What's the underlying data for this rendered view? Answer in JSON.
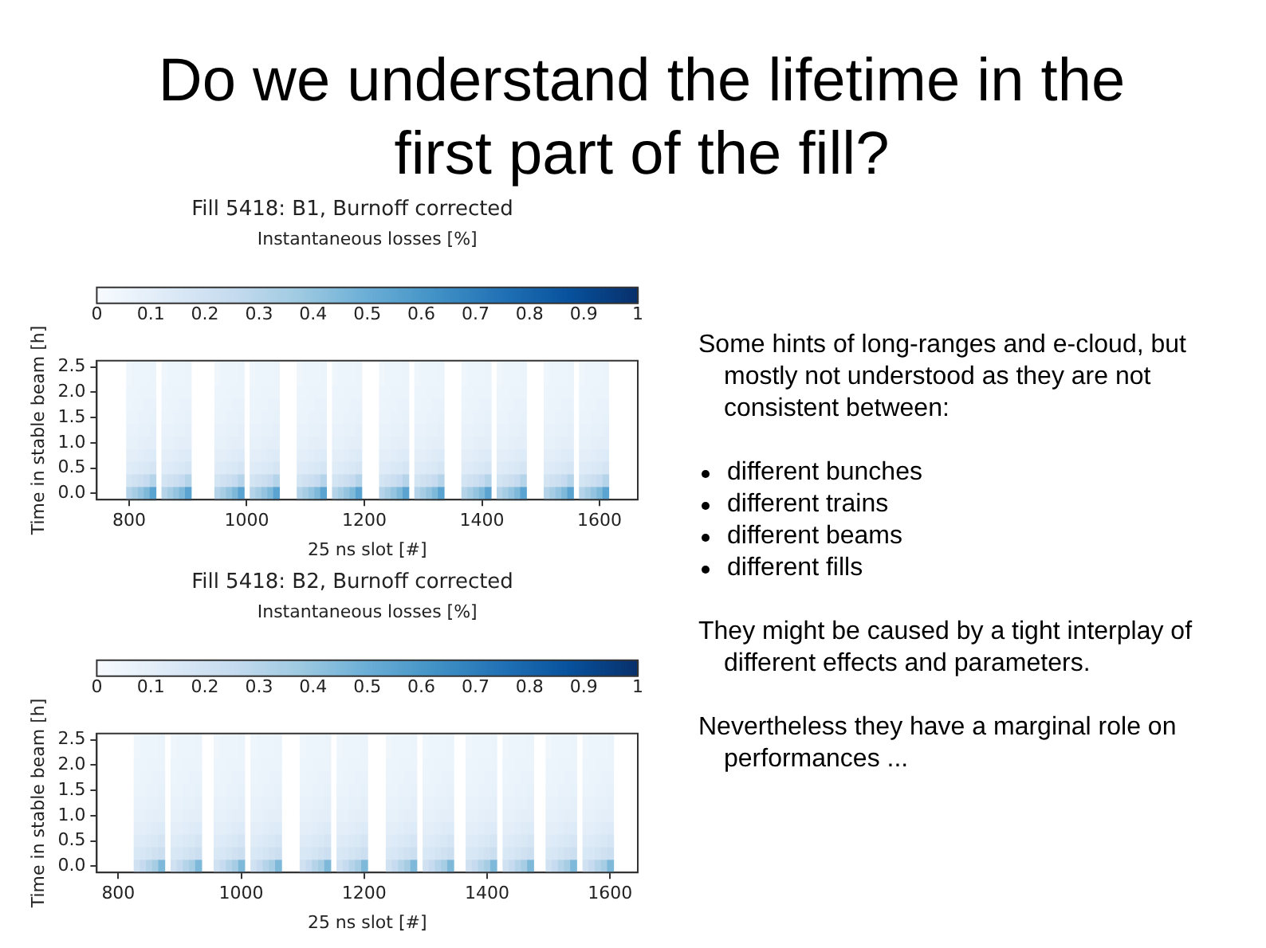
{
  "chart_data": [
    {
      "type": "heatmap",
      "title": "Fill 5418: B1, Burnoff corrected",
      "clabel": "Instantaneous losses [%]",
      "xlabel": "25 ns slot [#]",
      "ylabel": "Time in stable beam [h]",
      "clim": [
        0,
        1
      ],
      "cticks": [
        0,
        0.1,
        0.2,
        0.3,
        0.4,
        0.5,
        0.6,
        0.7,
        0.8,
        0.9,
        1
      ],
      "categories": [
        null,
        null,
        null,
        null,
        null,
        "800",
        null,
        null,
        null,
        null,
        null,
        null,
        null,
        null,
        null,
        null,
        null,
        null,
        null,
        null,
        null,
        null,
        null,
        null,
        null,
        "1000",
        null,
        null,
        null,
        null,
        null,
        null,
        null,
        null,
        null,
        null,
        null,
        null,
        null,
        null,
        null,
        null,
        null,
        null,
        null,
        "1200",
        null,
        null,
        null,
        null,
        null,
        null,
        null,
        null,
        null,
        null,
        null,
        null,
        null,
        null,
        null,
        null,
        null,
        null,
        null,
        "1400",
        null,
        null,
        null,
        null,
        null,
        null,
        null,
        null,
        null,
        null,
        null,
        null,
        null,
        null,
        null,
        null,
        null,
        null,
        null,
        "1600",
        null,
        null,
        null,
        null,
        null,
        null
      ],
      "y_categories": [
        "2.5",
        null,
        "2.0",
        null,
        "1.5",
        null,
        "1.0",
        null,
        "0.5",
        null,
        "0.0"
      ],
      "cells": [
        [
          null,
          null,
          null,
          null,
          null,
          0.04,
          0.05,
          0.05,
          0.05,
          0.06,
          null,
          0.04,
          0.05,
          0.05,
          0.05,
          0.06,
          null,
          null,
          null,
          null,
          0.04,
          0.05,
          0.05,
          0.05,
          0.06,
          null,
          0.04,
          0.05,
          0.05,
          0.05,
          0.06,
          null,
          null,
          null,
          0.04,
          0.05,
          0.05,
          0.05,
          0.06,
          null,
          0.04,
          0.05,
          0.05,
          0.05,
          0.06,
          null,
          null,
          null,
          0.04,
          0.05,
          0.05,
          0.05,
          0.06,
          null,
          0.04,
          0.05,
          0.05,
          0.05,
          0.06,
          null,
          null,
          null,
          0.04,
          0.05,
          0.05,
          0.05,
          0.06,
          null,
          0.04,
          0.05,
          0.05,
          0.05,
          0.06,
          null,
          null,
          null,
          0.04,
          0.05,
          0.05,
          0.05,
          0.06,
          null,
          0.04,
          0.05,
          0.05,
          0.05,
          0.06,
          null,
          null,
          null,
          null,
          null
        ],
        [
          null,
          null,
          null,
          null,
          null,
          0.04,
          0.05,
          0.05,
          0.05,
          0.06,
          null,
          0.04,
          0.05,
          0.05,
          0.05,
          0.06,
          null,
          null,
          null,
          null,
          0.04,
          0.05,
          0.05,
          0.05,
          0.06,
          null,
          0.04,
          0.05,
          0.05,
          0.05,
          0.06,
          null,
          null,
          null,
          0.04,
          0.05,
          0.05,
          0.05,
          0.06,
          null,
          0.04,
          0.05,
          0.05,
          0.05,
          0.06,
          null,
          null,
          null,
          0.04,
          0.05,
          0.05,
          0.05,
          0.06,
          null,
          0.04,
          0.05,
          0.05,
          0.05,
          0.06,
          null,
          null,
          null,
          0.04,
          0.05,
          0.05,
          0.05,
          0.06,
          null,
          0.04,
          0.05,
          0.05,
          0.05,
          0.06,
          null,
          null,
          null,
          0.04,
          0.05,
          0.05,
          0.05,
          0.06,
          null,
          0.04,
          0.05,
          0.05,
          0.05,
          0.06,
          null,
          null,
          null,
          null,
          null
        ],
        [
          null,
          null,
          null,
          null,
          null,
          0.05,
          0.05,
          0.06,
          0.06,
          0.06,
          null,
          0.05,
          0.05,
          0.06,
          0.06,
          0.06,
          null,
          null,
          null,
          null,
          0.05,
          0.05,
          0.06,
          0.06,
          0.06,
          null,
          0.05,
          0.05,
          0.06,
          0.06,
          0.06,
          null,
          null,
          null,
          0.05,
          0.05,
          0.06,
          0.06,
          0.06,
          null,
          0.05,
          0.05,
          0.06,
          0.06,
          0.06,
          null,
          null,
          null,
          0.05,
          0.05,
          0.06,
          0.06,
          0.06,
          null,
          0.05,
          0.05,
          0.06,
          0.06,
          0.06,
          null,
          null,
          null,
          0.05,
          0.05,
          0.06,
          0.06,
          0.06,
          null,
          0.05,
          0.05,
          0.06,
          0.06,
          0.06,
          null,
          null,
          null,
          0.05,
          0.05,
          0.06,
          0.06,
          0.06,
          null,
          0.05,
          0.05,
          0.06,
          0.06,
          0.06,
          null,
          null,
          null,
          null,
          null
        ],
        [
          null,
          null,
          null,
          null,
          null,
          0.05,
          0.06,
          0.06,
          0.07,
          0.07,
          null,
          0.05,
          0.06,
          0.06,
          0.07,
          0.07,
          null,
          null,
          null,
          null,
          0.05,
          0.06,
          0.06,
          0.07,
          0.07,
          null,
          0.05,
          0.06,
          0.06,
          0.07,
          0.07,
          null,
          null,
          null,
          0.05,
          0.06,
          0.06,
          0.07,
          0.07,
          null,
          0.05,
          0.06,
          0.06,
          0.07,
          0.07,
          null,
          null,
          null,
          0.05,
          0.06,
          0.06,
          0.07,
          0.07,
          null,
          0.05,
          0.06,
          0.06,
          0.07,
          0.07,
          null,
          null,
          null,
          0.05,
          0.06,
          0.06,
          0.07,
          0.07,
          null,
          0.05,
          0.06,
          0.06,
          0.07,
          0.07,
          null,
          null,
          null,
          0.05,
          0.06,
          0.06,
          0.07,
          0.07,
          null,
          0.05,
          0.06,
          0.06,
          0.07,
          0.07,
          null,
          null,
          null,
          null,
          null
        ],
        [
          null,
          null,
          null,
          null,
          null,
          0.06,
          0.06,
          0.07,
          0.07,
          0.08,
          null,
          0.06,
          0.06,
          0.07,
          0.07,
          0.08,
          null,
          null,
          null,
          null,
          0.06,
          0.06,
          0.07,
          0.07,
          0.08,
          null,
          0.06,
          0.06,
          0.07,
          0.07,
          0.08,
          null,
          null,
          null,
          0.06,
          0.06,
          0.07,
          0.07,
          0.08,
          null,
          0.06,
          0.06,
          0.07,
          0.07,
          0.08,
          null,
          null,
          null,
          0.06,
          0.06,
          0.07,
          0.07,
          0.08,
          null,
          0.06,
          0.06,
          0.07,
          0.07,
          0.08,
          null,
          null,
          null,
          0.06,
          0.06,
          0.07,
          0.07,
          0.08,
          null,
          0.06,
          0.06,
          0.07,
          0.07,
          0.08,
          null,
          null,
          null,
          0.06,
          0.06,
          0.07,
          0.07,
          0.08,
          null,
          0.06,
          0.06,
          0.07,
          0.07,
          0.08,
          null,
          null,
          null,
          null,
          null
        ],
        [
          null,
          null,
          null,
          null,
          null,
          0.07,
          0.07,
          0.08,
          0.08,
          0.09,
          null,
          0.07,
          0.07,
          0.08,
          0.08,
          0.09,
          null,
          null,
          null,
          null,
          0.07,
          0.07,
          0.08,
          0.08,
          0.09,
          null,
          0.07,
          0.07,
          0.08,
          0.08,
          0.09,
          null,
          null,
          null,
          0.07,
          0.07,
          0.08,
          0.08,
          0.09,
          null,
          0.07,
          0.07,
          0.08,
          0.08,
          0.09,
          null,
          null,
          null,
          0.07,
          0.07,
          0.08,
          0.08,
          0.09,
          null,
          0.07,
          0.07,
          0.08,
          0.08,
          0.09,
          null,
          null,
          null,
          0.07,
          0.07,
          0.08,
          0.08,
          0.09,
          null,
          0.07,
          0.07,
          0.08,
          0.08,
          0.09,
          null,
          null,
          null,
          0.07,
          0.07,
          0.08,
          0.08,
          0.09,
          null,
          0.07,
          0.07,
          0.08,
          0.08,
          0.09,
          null,
          null,
          null,
          null,
          null
        ],
        [
          null,
          null,
          null,
          null,
          null,
          0.08,
          0.08,
          0.09,
          0.1,
          0.1,
          null,
          0.08,
          0.08,
          0.09,
          0.1,
          0.1,
          null,
          null,
          null,
          null,
          0.08,
          0.08,
          0.09,
          0.1,
          0.1,
          null,
          0.08,
          0.08,
          0.09,
          0.1,
          0.1,
          null,
          null,
          null,
          0.08,
          0.08,
          0.09,
          0.1,
          0.1,
          null,
          0.08,
          0.08,
          0.09,
          0.1,
          0.1,
          null,
          null,
          null,
          0.08,
          0.08,
          0.09,
          0.1,
          0.1,
          null,
          0.08,
          0.08,
          0.09,
          0.1,
          0.1,
          null,
          null,
          null,
          0.08,
          0.08,
          0.09,
          0.1,
          0.1,
          null,
          0.08,
          0.08,
          0.09,
          0.1,
          0.1,
          null,
          null,
          null,
          0.08,
          0.08,
          0.09,
          0.1,
          0.1,
          null,
          0.08,
          0.08,
          0.09,
          0.1,
          0.1,
          null,
          null,
          null,
          null,
          null
        ],
        [
          null,
          null,
          null,
          null,
          null,
          0.1,
          0.1,
          0.11,
          0.12,
          0.13,
          null,
          0.1,
          0.1,
          0.11,
          0.12,
          0.13,
          null,
          null,
          null,
          null,
          0.1,
          0.1,
          0.11,
          0.12,
          0.13,
          null,
          0.1,
          0.1,
          0.11,
          0.12,
          0.13,
          null,
          null,
          null,
          0.1,
          0.1,
          0.11,
          0.12,
          0.13,
          null,
          0.1,
          0.1,
          0.11,
          0.12,
          0.13,
          null,
          null,
          null,
          0.1,
          0.1,
          0.11,
          0.12,
          0.13,
          null,
          0.1,
          0.1,
          0.11,
          0.12,
          0.13,
          null,
          null,
          null,
          0.1,
          0.1,
          0.11,
          0.12,
          0.13,
          null,
          0.1,
          0.1,
          0.11,
          0.12,
          0.13,
          null,
          null,
          null,
          0.1,
          0.1,
          0.11,
          0.12,
          0.13,
          null,
          0.1,
          0.1,
          0.11,
          0.12,
          0.13,
          null,
          null,
          null,
          null,
          null
        ],
        [
          null,
          null,
          null,
          null,
          null,
          0.12,
          0.13,
          0.14,
          0.15,
          0.17,
          null,
          0.12,
          0.13,
          0.14,
          0.15,
          0.17,
          null,
          null,
          null,
          null,
          0.12,
          0.13,
          0.14,
          0.15,
          0.17,
          null,
          0.12,
          0.13,
          0.14,
          0.15,
          0.17,
          null,
          null,
          null,
          0.12,
          0.13,
          0.14,
          0.15,
          0.17,
          null,
          0.12,
          0.13,
          0.14,
          0.15,
          0.17,
          null,
          null,
          null,
          0.12,
          0.13,
          0.14,
          0.15,
          0.17,
          null,
          0.12,
          0.13,
          0.14,
          0.15,
          0.17,
          null,
          null,
          null,
          0.12,
          0.13,
          0.14,
          0.15,
          0.17,
          null,
          0.12,
          0.13,
          0.14,
          0.15,
          0.17,
          null,
          null,
          null,
          0.12,
          0.13,
          0.14,
          0.15,
          0.17,
          null,
          0.12,
          0.13,
          0.14,
          0.15,
          0.17,
          null,
          null,
          null,
          null,
          null
        ],
        [
          null,
          null,
          null,
          null,
          null,
          0.18,
          0.2,
          0.22,
          0.25,
          0.3,
          null,
          0.18,
          0.2,
          0.22,
          0.25,
          0.3,
          null,
          null,
          null,
          null,
          0.18,
          0.2,
          0.22,
          0.25,
          0.3,
          null,
          0.18,
          0.2,
          0.22,
          0.25,
          0.3,
          null,
          null,
          null,
          0.18,
          0.2,
          0.22,
          0.25,
          0.3,
          null,
          0.18,
          0.2,
          0.22,
          0.25,
          0.3,
          null,
          null,
          null,
          0.18,
          0.2,
          0.22,
          0.25,
          0.3,
          null,
          0.18,
          0.2,
          0.22,
          0.25,
          0.3,
          null,
          null,
          null,
          0.18,
          0.2,
          0.22,
          0.25,
          0.3,
          null,
          0.18,
          0.2,
          0.22,
          0.25,
          0.3,
          null,
          null,
          null,
          0.18,
          0.2,
          0.22,
          0.25,
          0.3,
          null,
          0.18,
          0.2,
          0.22,
          0.25,
          0.3,
          null,
          null,
          null,
          null,
          null
        ],
        [
          null,
          null,
          null,
          null,
          null,
          0.3,
          0.35,
          0.4,
          0.45,
          0.55,
          null,
          0.3,
          0.35,
          0.4,
          0.45,
          0.55,
          null,
          null,
          null,
          null,
          0.3,
          0.35,
          0.4,
          0.45,
          0.55,
          null,
          0.3,
          0.35,
          0.4,
          0.45,
          0.55,
          null,
          null,
          null,
          0.3,
          0.35,
          0.4,
          0.45,
          0.55,
          null,
          0.3,
          0.35,
          0.4,
          0.45,
          0.55,
          null,
          null,
          null,
          0.3,
          0.35,
          0.4,
          0.45,
          0.55,
          null,
          0.3,
          0.35,
          0.4,
          0.45,
          0.55,
          null,
          null,
          null,
          0.3,
          0.35,
          0.4,
          0.45,
          0.55,
          null,
          0.3,
          0.35,
          0.4,
          0.45,
          0.55,
          null,
          null,
          null,
          0.3,
          0.35,
          0.4,
          0.45,
          0.55,
          null,
          0.3,
          0.35,
          0.4,
          0.45,
          0.55,
          null,
          null,
          null,
          null,
          null
        ]
      ]
    },
    {
      "type": "heatmap",
      "title": "Fill 5418: B2, Burnoff corrected",
      "clabel": "Instantaneous losses [%]",
      "xlabel": "25 ns slot [#]",
      "ylabel": "Time in stable beam [h]",
      "clim": [
        0,
        1
      ],
      "cticks": [
        0,
        0.1,
        0.2,
        0.3,
        0.4,
        0.5,
        0.6,
        0.7,
        0.8,
        0.9,
        1
      ],
      "categories": [
        null,
        null,
        null,
        "800",
        null,
        null,
        null,
        null,
        null,
        null,
        null,
        null,
        null,
        null,
        null,
        null,
        null,
        null,
        null,
        null,
        null,
        null,
        null,
        "1000",
        null,
        null,
        null,
        null,
        null,
        null,
        null,
        null,
        null,
        null,
        null,
        null,
        null,
        null,
        null,
        null,
        null,
        null,
        null,
        "1200",
        null,
        null,
        null,
        null,
        null,
        null,
        null,
        null,
        null,
        null,
        null,
        null,
        null,
        null,
        null,
        null,
        null,
        null,
        null,
        "1400",
        null,
        null,
        null,
        null,
        null,
        null,
        null,
        null,
        null,
        null,
        null,
        null,
        null,
        null,
        null,
        null,
        null,
        null,
        null,
        "1600",
        null,
        null,
        null,
        null
      ],
      "y_categories": [
        "2.5",
        null,
        "2.0",
        null,
        "1.5",
        null,
        "1.0",
        null,
        "0.5",
        null,
        "0.0"
      ],
      "cells": [
        [
          null,
          null,
          null,
          null,
          null,
          null,
          0.04,
          0.05,
          0.05,
          0.05,
          0.06,
          null,
          0.04,
          0.05,
          0.05,
          0.05,
          0.06,
          null,
          null,
          0.04,
          0.05,
          0.05,
          0.05,
          0.06,
          null,
          0.04,
          0.05,
          0.05,
          0.05,
          0.06,
          null,
          null,
          null,
          0.04,
          0.05,
          0.05,
          0.05,
          0.06,
          null,
          0.04,
          0.05,
          0.05,
          0.05,
          0.06,
          null,
          null,
          null,
          0.04,
          0.05,
          0.05,
          0.05,
          0.06,
          null,
          0.04,
          0.05,
          0.05,
          0.05,
          0.06,
          null,
          null,
          0.04,
          0.05,
          0.05,
          0.05,
          0.06,
          null,
          0.04,
          0.05,
          0.05,
          0.05,
          0.06,
          null,
          null,
          0.04,
          0.05,
          0.05,
          0.05,
          0.06,
          null,
          0.04,
          0.05,
          0.05,
          0.05,
          0.06,
          null,
          null,
          null,
          null
        ],
        [
          null,
          null,
          null,
          null,
          null,
          null,
          0.04,
          0.05,
          0.05,
          0.05,
          0.06,
          null,
          0.04,
          0.05,
          0.05,
          0.05,
          0.06,
          null,
          null,
          0.04,
          0.05,
          0.05,
          0.05,
          0.06,
          null,
          0.04,
          0.05,
          0.05,
          0.05,
          0.06,
          null,
          null,
          null,
          0.04,
          0.05,
          0.05,
          0.05,
          0.06,
          null,
          0.04,
          0.05,
          0.05,
          0.05,
          0.06,
          null,
          null,
          null,
          0.04,
          0.05,
          0.05,
          0.05,
          0.06,
          null,
          0.04,
          0.05,
          0.05,
          0.05,
          0.06,
          null,
          null,
          0.04,
          0.05,
          0.05,
          0.05,
          0.06,
          null,
          0.04,
          0.05,
          0.05,
          0.05,
          0.06,
          null,
          null,
          0.04,
          0.05,
          0.05,
          0.05,
          0.06,
          null,
          0.04,
          0.05,
          0.05,
          0.05,
          0.06,
          null,
          null,
          null,
          null
        ],
        [
          null,
          null,
          null,
          null,
          null,
          null,
          0.05,
          0.05,
          0.06,
          0.06,
          0.06,
          null,
          0.05,
          0.05,
          0.06,
          0.06,
          0.06,
          null,
          null,
          0.05,
          0.05,
          0.06,
          0.06,
          0.06,
          null,
          0.05,
          0.05,
          0.06,
          0.06,
          0.06,
          null,
          null,
          null,
          0.05,
          0.05,
          0.06,
          0.06,
          0.06,
          null,
          0.05,
          0.05,
          0.06,
          0.06,
          0.06,
          null,
          null,
          null,
          0.05,
          0.05,
          0.06,
          0.06,
          0.06,
          null,
          0.05,
          0.05,
          0.06,
          0.06,
          0.06,
          null,
          null,
          0.05,
          0.05,
          0.06,
          0.06,
          0.06,
          null,
          0.05,
          0.05,
          0.06,
          0.06,
          0.06,
          null,
          null,
          0.05,
          0.05,
          0.06,
          0.06,
          0.06,
          null,
          0.05,
          0.05,
          0.06,
          0.06,
          0.06,
          null,
          null,
          null,
          null
        ],
        [
          null,
          null,
          null,
          null,
          null,
          null,
          0.05,
          0.06,
          0.06,
          0.07,
          0.07,
          null,
          0.05,
          0.06,
          0.06,
          0.07,
          0.07,
          null,
          null,
          0.05,
          0.06,
          0.06,
          0.07,
          0.07,
          null,
          0.05,
          0.06,
          0.06,
          0.07,
          0.07,
          null,
          null,
          null,
          0.05,
          0.06,
          0.06,
          0.07,
          0.07,
          null,
          0.05,
          0.06,
          0.06,
          0.07,
          0.07,
          null,
          null,
          null,
          0.05,
          0.06,
          0.06,
          0.07,
          0.07,
          null,
          0.05,
          0.06,
          0.06,
          0.07,
          0.07,
          null,
          null,
          0.05,
          0.06,
          0.06,
          0.07,
          0.07,
          null,
          0.05,
          0.06,
          0.06,
          0.07,
          0.07,
          null,
          null,
          0.05,
          0.06,
          0.06,
          0.07,
          0.07,
          null,
          0.05,
          0.06,
          0.06,
          0.07,
          0.07,
          null,
          null,
          null,
          null
        ],
        [
          null,
          null,
          null,
          null,
          null,
          null,
          0.06,
          0.06,
          0.07,
          0.07,
          0.08,
          null,
          0.06,
          0.06,
          0.07,
          0.07,
          0.08,
          null,
          null,
          0.06,
          0.06,
          0.07,
          0.07,
          0.08,
          null,
          0.06,
          0.06,
          0.07,
          0.07,
          0.08,
          null,
          null,
          null,
          0.06,
          0.06,
          0.07,
          0.07,
          0.08,
          null,
          0.06,
          0.06,
          0.07,
          0.07,
          0.08,
          null,
          null,
          null,
          0.06,
          0.06,
          0.07,
          0.07,
          0.08,
          null,
          0.06,
          0.06,
          0.07,
          0.07,
          0.08,
          null,
          null,
          0.06,
          0.06,
          0.07,
          0.07,
          0.08,
          null,
          0.06,
          0.06,
          0.07,
          0.07,
          0.08,
          null,
          null,
          0.06,
          0.06,
          0.07,
          0.07,
          0.08,
          null,
          0.06,
          0.06,
          0.07,
          0.07,
          0.08,
          null,
          null,
          null,
          null
        ],
        [
          null,
          null,
          null,
          null,
          null,
          null,
          0.07,
          0.07,
          0.08,
          0.08,
          0.09,
          null,
          0.07,
          0.07,
          0.08,
          0.08,
          0.09,
          null,
          null,
          0.07,
          0.07,
          0.08,
          0.08,
          0.09,
          null,
          0.07,
          0.07,
          0.08,
          0.08,
          0.09,
          null,
          null,
          null,
          0.07,
          0.07,
          0.08,
          0.08,
          0.09,
          null,
          0.07,
          0.07,
          0.08,
          0.08,
          0.09,
          null,
          null,
          null,
          0.07,
          0.07,
          0.08,
          0.08,
          0.09,
          null,
          0.07,
          0.07,
          0.08,
          0.08,
          0.09,
          null,
          null,
          0.07,
          0.07,
          0.08,
          0.08,
          0.09,
          null,
          0.07,
          0.07,
          0.08,
          0.08,
          0.09,
          null,
          null,
          0.07,
          0.07,
          0.08,
          0.08,
          0.09,
          null,
          0.07,
          0.07,
          0.08,
          0.08,
          0.09,
          null,
          null,
          null,
          null
        ],
        [
          null,
          null,
          null,
          null,
          null,
          null,
          0.08,
          0.08,
          0.09,
          0.1,
          0.1,
          null,
          0.08,
          0.08,
          0.09,
          0.1,
          0.1,
          null,
          null,
          0.08,
          0.08,
          0.09,
          0.1,
          0.1,
          null,
          0.08,
          0.08,
          0.09,
          0.1,
          0.1,
          null,
          null,
          null,
          0.08,
          0.08,
          0.09,
          0.1,
          0.1,
          null,
          0.08,
          0.08,
          0.09,
          0.1,
          0.1,
          null,
          null,
          null,
          0.08,
          0.08,
          0.09,
          0.1,
          0.1,
          null,
          0.08,
          0.08,
          0.09,
          0.1,
          0.1,
          null,
          null,
          0.08,
          0.08,
          0.09,
          0.1,
          0.1,
          null,
          0.08,
          0.08,
          0.09,
          0.1,
          0.1,
          null,
          null,
          0.08,
          0.08,
          0.09,
          0.1,
          0.1,
          null,
          0.08,
          0.08,
          0.09,
          0.1,
          0.1,
          null,
          null,
          null,
          null
        ],
        [
          null,
          null,
          null,
          null,
          null,
          null,
          0.1,
          0.1,
          0.11,
          0.12,
          0.13,
          null,
          0.1,
          0.1,
          0.11,
          0.12,
          0.13,
          null,
          null,
          0.1,
          0.1,
          0.11,
          0.12,
          0.13,
          null,
          0.1,
          0.1,
          0.11,
          0.12,
          0.13,
          null,
          null,
          null,
          0.1,
          0.1,
          0.11,
          0.12,
          0.13,
          null,
          0.1,
          0.1,
          0.11,
          0.12,
          0.13,
          null,
          null,
          null,
          0.1,
          0.1,
          0.11,
          0.12,
          0.13,
          null,
          0.1,
          0.1,
          0.11,
          0.12,
          0.13,
          null,
          null,
          0.1,
          0.1,
          0.11,
          0.12,
          0.13,
          null,
          0.1,
          0.1,
          0.11,
          0.12,
          0.13,
          null,
          null,
          0.1,
          0.1,
          0.11,
          0.12,
          0.13,
          null,
          0.1,
          0.1,
          0.11,
          0.12,
          0.13,
          null,
          null,
          null,
          null
        ],
        [
          null,
          null,
          null,
          null,
          null,
          null,
          0.12,
          0.13,
          0.14,
          0.15,
          0.17,
          null,
          0.12,
          0.13,
          0.14,
          0.15,
          0.17,
          null,
          null,
          0.12,
          0.13,
          0.14,
          0.15,
          0.17,
          null,
          0.12,
          0.13,
          0.14,
          0.15,
          0.17,
          null,
          null,
          null,
          0.12,
          0.13,
          0.14,
          0.15,
          0.17,
          null,
          0.12,
          0.13,
          0.14,
          0.15,
          0.17,
          null,
          null,
          null,
          0.12,
          0.13,
          0.14,
          0.15,
          0.17,
          null,
          0.12,
          0.13,
          0.14,
          0.15,
          0.17,
          null,
          null,
          0.12,
          0.13,
          0.14,
          0.15,
          0.17,
          null,
          0.12,
          0.13,
          0.14,
          0.15,
          0.17,
          null,
          null,
          0.12,
          0.13,
          0.14,
          0.15,
          0.17,
          null,
          0.12,
          0.13,
          0.14,
          0.15,
          0.17,
          null,
          null,
          null,
          null
        ],
        [
          null,
          null,
          null,
          null,
          null,
          null,
          0.15,
          0.16,
          0.18,
          0.2,
          0.22,
          null,
          0.15,
          0.16,
          0.18,
          0.2,
          0.22,
          null,
          null,
          0.15,
          0.16,
          0.18,
          0.2,
          0.22,
          null,
          0.15,
          0.16,
          0.18,
          0.2,
          0.22,
          null,
          null,
          null,
          0.15,
          0.16,
          0.18,
          0.2,
          0.22,
          null,
          0.15,
          0.16,
          0.18,
          0.2,
          0.22,
          null,
          null,
          null,
          0.15,
          0.16,
          0.18,
          0.2,
          0.22,
          null,
          0.15,
          0.16,
          0.18,
          0.2,
          0.22,
          null,
          null,
          0.15,
          0.16,
          0.18,
          0.2,
          0.22,
          null,
          0.15,
          0.16,
          0.18,
          0.2,
          0.22,
          null,
          null,
          0.15,
          0.16,
          0.18,
          0.2,
          0.22,
          null,
          0.15,
          0.16,
          0.18,
          0.2,
          0.22,
          null,
          null,
          null,
          null
        ],
        [
          null,
          null,
          null,
          null,
          null,
          null,
          0.2,
          0.25,
          0.3,
          0.35,
          0.45,
          null,
          0.2,
          0.25,
          0.3,
          0.35,
          0.45,
          null,
          null,
          0.2,
          0.25,
          0.3,
          0.35,
          0.45,
          null,
          0.2,
          0.25,
          0.3,
          0.35,
          0.45,
          null,
          null,
          null,
          0.2,
          0.25,
          0.3,
          0.35,
          0.45,
          null,
          0.2,
          0.25,
          0.3,
          0.35,
          0.45,
          null,
          null,
          null,
          0.2,
          0.25,
          0.3,
          0.35,
          0.45,
          null,
          0.2,
          0.25,
          0.3,
          0.35,
          0.45,
          null,
          null,
          0.2,
          0.25,
          0.3,
          0.35,
          0.45,
          null,
          0.2,
          0.25,
          0.3,
          0.35,
          0.45,
          null,
          null,
          0.2,
          0.25,
          0.3,
          0.35,
          0.45,
          null,
          0.2,
          0.25,
          0.3,
          0.35,
          0.45,
          null,
          null,
          null,
          null
        ]
      ]
    },
    {
      "type": "other",
      "title": "Do we understand the lifetime in the first part of the fill?",
      "annotations": [
        "Some hints of long-ranges and e-cloud, but mostly not understood as they are not consistent between:",
        "different bunches",
        "different trains",
        "different beams",
        "different fills",
        "They might be caused by a tight interplay of different effects and parameters.",
        "Nevertheless they have a marginal role on performances ..."
      ]
    }
  ]
}
